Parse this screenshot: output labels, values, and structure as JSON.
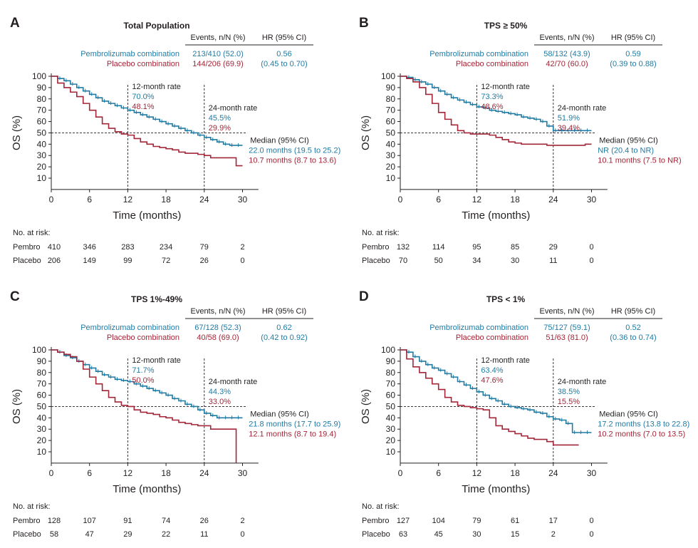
{
  "colors": {
    "pembro": "#1f7ba3",
    "placebo": "#a32638",
    "text": "#231f20"
  },
  "labels": {
    "events_header": "Events, n/N (%)",
    "hr_header": "HR (95% CI)",
    "pembro_arm": "Pembrolizumab combination",
    "placebo_arm": "Placebo combination",
    "rate_12": "12-month rate",
    "rate_24": "24-month rate",
    "median": "Median (95% CI)",
    "y_axis": "OS (%)",
    "x_axis": "Time (months)",
    "at_risk": "No. at risk:",
    "row_pembro": "Pembro",
    "row_placebo": "Placebo"
  },
  "chart_data": [
    {
      "type": "line",
      "panel": "A",
      "title": "Total Population",
      "xlabel": "Time (months)",
      "ylabel": "OS (%)",
      "xlim": [
        0,
        32
      ],
      "ylim": [
        0,
        100
      ],
      "xticks": [
        0,
        6,
        12,
        18,
        24,
        30
      ],
      "yticks": [
        10,
        20,
        30,
        40,
        50,
        60,
        70,
        80,
        90,
        100
      ],
      "reference_line_y": 50,
      "reference_lines_x": [
        12,
        24
      ],
      "pembro_events": "213/410 (52.0)",
      "placebo_events": "144/206 (69.9)",
      "hr": "0.56",
      "hr_ci": "(0.45 to 0.70)",
      "rate12_pembro": "70.0%",
      "rate12_placebo": "48.1%",
      "rate24_pembro": "45.5%",
      "rate24_placebo": "29.9%",
      "median_pembro": "22.0 months (19.5 to 25.2)",
      "median_placebo": "10.7 months (8.7 to 13.6)",
      "at_risk_pembro": [
        "410",
        "346",
        "283",
        "234",
        "79",
        "2"
      ],
      "at_risk_placebo": [
        "206",
        "149",
        "99",
        "72",
        "26",
        "0"
      ],
      "series": [
        {
          "name": "Pembrolizumab combination",
          "x": [
            0,
            1,
            2,
            3,
            4,
            5,
            6,
            7,
            8,
            9,
            10,
            11,
            12,
            13,
            14,
            15,
            16,
            17,
            18,
            19,
            20,
            21,
            22,
            23,
            24,
            25,
            26,
            27,
            28,
            29,
            30
          ],
          "y": [
            100,
            98,
            96,
            93,
            90,
            87,
            84,
            81,
            78,
            76,
            74,
            72,
            70,
            68,
            66,
            64,
            62,
            60,
            58,
            56,
            54,
            52,
            50,
            48,
            46,
            44,
            42,
            40,
            39,
            39,
            39
          ]
        },
        {
          "name": "Placebo combination",
          "x": [
            0,
            1,
            2,
            3,
            4,
            5,
            6,
            7,
            8,
            9,
            10,
            11,
            12,
            13,
            14,
            15,
            16,
            17,
            18,
            19,
            20,
            21,
            22,
            23,
            24,
            25,
            26,
            27,
            28,
            29,
            30
          ],
          "y": [
            100,
            94,
            90,
            86,
            82,
            76,
            70,
            64,
            58,
            54,
            51,
            49,
            48,
            45,
            42,
            40,
            38,
            37,
            36,
            35,
            33,
            32,
            32,
            31,
            30,
            28,
            28,
            28,
            28,
            21,
            21
          ]
        }
      ]
    },
    {
      "type": "line",
      "panel": "B",
      "title": "TPS ≥ 50%",
      "xlabel": "Time (months)",
      "ylabel": "OS (%)",
      "xlim": [
        0,
        32
      ],
      "ylim": [
        0,
        100
      ],
      "xticks": [
        0,
        6,
        12,
        18,
        24,
        30
      ],
      "yticks": [
        10,
        20,
        30,
        40,
        50,
        60,
        70,
        80,
        90,
        100
      ],
      "reference_line_y": 50,
      "reference_lines_x": [
        12,
        24
      ],
      "pembro_events": "58/132 (43.9)",
      "placebo_events": "42/70 (60.0)",
      "hr": "0.59",
      "hr_ci": "(0.39 to 0.88)",
      "rate12_pembro": "73.3%",
      "rate12_placebo": "48.6%",
      "rate24_pembro": "51.9%",
      "rate24_placebo": "39.4%",
      "median_pembro": "NR (20.4 to NR)",
      "median_placebo": "10.1 months (7.5 to NR)",
      "at_risk_pembro": [
        "132",
        "114",
        "95",
        "85",
        "29",
        "0"
      ],
      "at_risk_placebo": [
        "70",
        "50",
        "34",
        "30",
        "11",
        "0"
      ],
      "series": [
        {
          "name": "Pembrolizumab combination",
          "x": [
            0,
            1,
            2,
            3,
            4,
            5,
            6,
            7,
            8,
            9,
            10,
            11,
            12,
            13,
            14,
            15,
            16,
            17,
            18,
            19,
            20,
            21,
            22,
            23,
            24,
            25,
            26,
            27,
            28,
            29,
            30
          ],
          "y": [
            100,
            99,
            97,
            95,
            93,
            90,
            87,
            84,
            81,
            79,
            77,
            75,
            73,
            72,
            70,
            69,
            68,
            67,
            66,
            64,
            63,
            62,
            60,
            56,
            52,
            52,
            52,
            52,
            52,
            52,
            52
          ]
        },
        {
          "name": "Placebo combination",
          "x": [
            0,
            1,
            2,
            3,
            4,
            5,
            6,
            7,
            8,
            9,
            10,
            11,
            12,
            13,
            14,
            15,
            16,
            17,
            18,
            19,
            20,
            21,
            22,
            23,
            24,
            25,
            26,
            27,
            28,
            29,
            30
          ],
          "y": [
            100,
            98,
            95,
            90,
            84,
            76,
            68,
            62,
            57,
            52,
            50,
            49,
            49,
            49,
            48,
            46,
            44,
            42,
            41,
            40,
            40,
            40,
            40,
            39,
            39,
            39,
            39,
            39,
            39,
            40,
            40
          ]
        }
      ]
    },
    {
      "type": "line",
      "panel": "C",
      "title": "TPS 1%-49%",
      "xlabel": "Time (months)",
      "ylabel": "OS (%)",
      "xlim": [
        0,
        32
      ],
      "ylim": [
        0,
        100
      ],
      "xticks": [
        0,
        6,
        12,
        18,
        24,
        30
      ],
      "yticks": [
        10,
        20,
        30,
        40,
        50,
        60,
        70,
        80,
        90,
        100
      ],
      "reference_line_y": 50,
      "reference_lines_x": [
        12,
        24
      ],
      "pembro_events": "67/128 (52.3)",
      "placebo_events": "40/58 (69.0)",
      "hr": "0.62",
      "hr_ci": "(0.42 to 0.92)",
      "rate12_pembro": "71.7%",
      "rate12_placebo": "50.0%",
      "rate24_pembro": "44.3%",
      "rate24_placebo": "33.0%",
      "median_pembro": "21.8 months (17.7 to 25.9)",
      "median_placebo": "12.1 months (8.7 to 19.4)",
      "at_risk_pembro": [
        "128",
        "107",
        "91",
        "74",
        "26",
        "2"
      ],
      "at_risk_placebo": [
        "58",
        "47",
        "29",
        "22",
        "11",
        "0"
      ],
      "series": [
        {
          "name": "Pembrolizumab combination",
          "x": [
            0,
            1,
            2,
            3,
            4,
            5,
            6,
            7,
            8,
            9,
            10,
            11,
            12,
            13,
            14,
            15,
            16,
            17,
            18,
            19,
            20,
            21,
            22,
            23,
            24,
            25,
            26,
            27,
            28,
            29,
            30
          ],
          "y": [
            100,
            98,
            95,
            93,
            90,
            87,
            84,
            81,
            78,
            76,
            74,
            73,
            72,
            70,
            68,
            66,
            64,
            62,
            60,
            57,
            55,
            52,
            50,
            47,
            44,
            42,
            40,
            40,
            40,
            40,
            40
          ]
        },
        {
          "name": "Placebo combination",
          "x": [
            0,
            1,
            2,
            3,
            4,
            5,
            6,
            7,
            8,
            9,
            10,
            11,
            12,
            13,
            14,
            15,
            16,
            17,
            18,
            19,
            20,
            21,
            22,
            23,
            24,
            25,
            26,
            27,
            28,
            29
          ],
          "y": [
            100,
            98,
            96,
            94,
            90,
            83,
            76,
            70,
            64,
            58,
            54,
            51,
            50,
            47,
            45,
            44,
            43,
            41,
            40,
            38,
            36,
            35,
            34,
            33,
            33,
            30,
            30,
            30,
            30,
            0
          ]
        }
      ]
    },
    {
      "type": "line",
      "panel": "D",
      "title": "TPS < 1%",
      "xlabel": "Time (months)",
      "ylabel": "OS (%)",
      "xlim": [
        0,
        32
      ],
      "ylim": [
        0,
        100
      ],
      "xticks": [
        0,
        6,
        12,
        18,
        24,
        30
      ],
      "yticks": [
        10,
        20,
        30,
        40,
        50,
        60,
        70,
        80,
        90,
        100
      ],
      "reference_line_y": 50,
      "reference_lines_x": [
        12,
        24
      ],
      "pembro_events": "75/127 (59.1)",
      "placebo_events": "51/63 (81.0)",
      "hr": "0.52",
      "hr_ci": "(0.36 to 0.74)",
      "rate12_pembro": "63.4%",
      "rate12_placebo": "47.6%",
      "rate24_pembro": "38.5%",
      "rate24_placebo": "15.5%",
      "median_pembro": "17.2 months (13.8 to 22.8)",
      "median_placebo": "10.2 months (7.0 to 13.5)",
      "at_risk_pembro": [
        "127",
        "104",
        "79",
        "61",
        "17",
        "0"
      ],
      "at_risk_placebo": [
        "63",
        "45",
        "30",
        "15",
        "2",
        "0"
      ],
      "series": [
        {
          "name": "Pembrolizumab combination",
          "x": [
            0,
            1,
            2,
            3,
            4,
            5,
            6,
            7,
            8,
            9,
            10,
            11,
            12,
            13,
            14,
            15,
            16,
            17,
            18,
            19,
            20,
            21,
            22,
            23,
            24,
            25,
            26,
            27,
            28,
            29,
            30
          ],
          "y": [
            100,
            98,
            94,
            90,
            87,
            84,
            82,
            79,
            76,
            72,
            69,
            66,
            63,
            60,
            57,
            55,
            52,
            50,
            49,
            48,
            47,
            45,
            44,
            41,
            39,
            38,
            35,
            27,
            27,
            27,
            27
          ]
        },
        {
          "name": "Placebo combination",
          "x": [
            0,
            1,
            2,
            3,
            4,
            5,
            6,
            7,
            8,
            9,
            10,
            11,
            12,
            13,
            14,
            15,
            16,
            17,
            18,
            19,
            20,
            21,
            22,
            23,
            24,
            25,
            26,
            27,
            28
          ],
          "y": [
            100,
            92,
            85,
            80,
            75,
            70,
            65,
            58,
            54,
            51,
            50,
            49,
            48,
            47,
            40,
            33,
            30,
            28,
            26,
            24,
            22,
            21,
            21,
            19,
            16,
            16,
            16,
            16,
            16
          ]
        }
      ]
    }
  ]
}
